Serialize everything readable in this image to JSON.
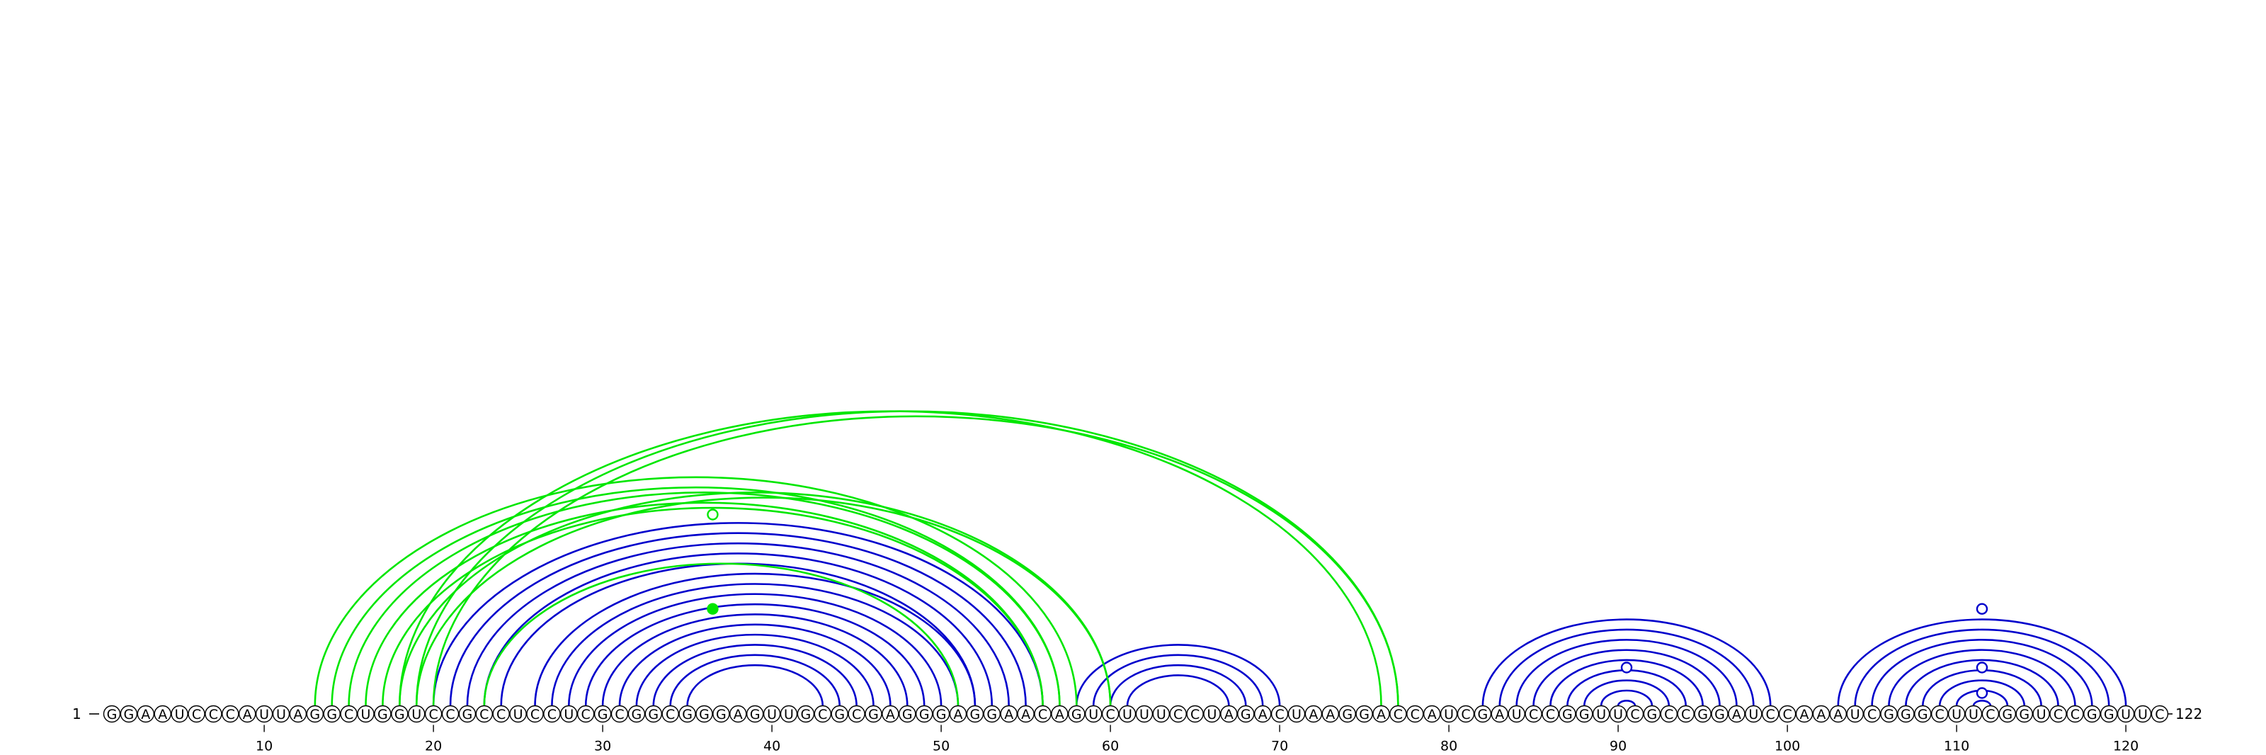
{
  "sequence": "GGAAUCCCAUUAGGCUGGUCCGCCUCCUCGCGGCGGGAGUUGCGCGAGGGAGGAACAGUCUUUCCUAGACUAAGGACCAUCGAUCCGGUUCGCCGGAUCCAAAUCGGGCUUCGGUCCGGUUC",
  "start_label": "1",
  "end_label": "122",
  "ticks": [
    "10",
    "20",
    "30",
    "40",
    "50",
    "60",
    "70",
    "80",
    "90",
    "100",
    "110",
    "120"
  ],
  "colors": {
    "blue": "#0000cc",
    "green": "#00e600"
  },
  "chart_data": {
    "type": "arc-diagram",
    "length": 122,
    "blue_pairs": [
      [
        26,
        52
      ],
      [
        27,
        51
      ],
      [
        28,
        50
      ],
      [
        29,
        49
      ],
      [
        30,
        48
      ],
      [
        31,
        47
      ],
      [
        32,
        46
      ],
      [
        33,
        45
      ],
      [
        34,
        44
      ],
      [
        35,
        43
      ],
      [
        20,
        56
      ],
      [
        21,
        55
      ],
      [
        22,
        54
      ],
      [
        23,
        53
      ],
      [
        24,
        52
      ],
      [
        58,
        70
      ],
      [
        59,
        69
      ],
      [
        60,
        68
      ],
      [
        61,
        67
      ],
      [
        82,
        99
      ],
      [
        83,
        98
      ],
      [
        84,
        97
      ],
      [
        85,
        96
      ],
      [
        86,
        95
      ],
      [
        87,
        94
      ],
      [
        88,
        93
      ],
      [
        89,
        92
      ],
      [
        90,
        91
      ],
      [
        103,
        120
      ],
      [
        104,
        119
      ],
      [
        105,
        118
      ],
      [
        106,
        117
      ],
      [
        107,
        116
      ],
      [
        108,
        115
      ],
      [
        109,
        114
      ],
      [
        110,
        113
      ],
      [
        111,
        112
      ]
    ],
    "green_pairs": [
      [
        13,
        58
      ],
      [
        14,
        57
      ],
      [
        15,
        57
      ],
      [
        16,
        56
      ],
      [
        17,
        56
      ],
      [
        18,
        60
      ],
      [
        19,
        60
      ],
      [
        18,
        76
      ],
      [
        19,
        77
      ],
      [
        20,
        77
      ],
      [
        23,
        51
      ]
    ],
    "markers": [
      {
        "position": 36.5,
        "series": "green",
        "level": 0.75,
        "filled": false
      },
      {
        "position": 36.5,
        "series": "green",
        "level": 0.38,
        "filled": true
      },
      {
        "position": 90.5,
        "series": "blue",
        "level": 0.15,
        "filled": false
      },
      {
        "position": 111.5,
        "series": "blue",
        "level": 0.38,
        "filled": false
      },
      {
        "position": 111.5,
        "series": "blue",
        "level": 0.15,
        "filled": false
      },
      {
        "position": 111.5,
        "series": "blue",
        "level": 0.05,
        "filled": false
      }
    ]
  }
}
